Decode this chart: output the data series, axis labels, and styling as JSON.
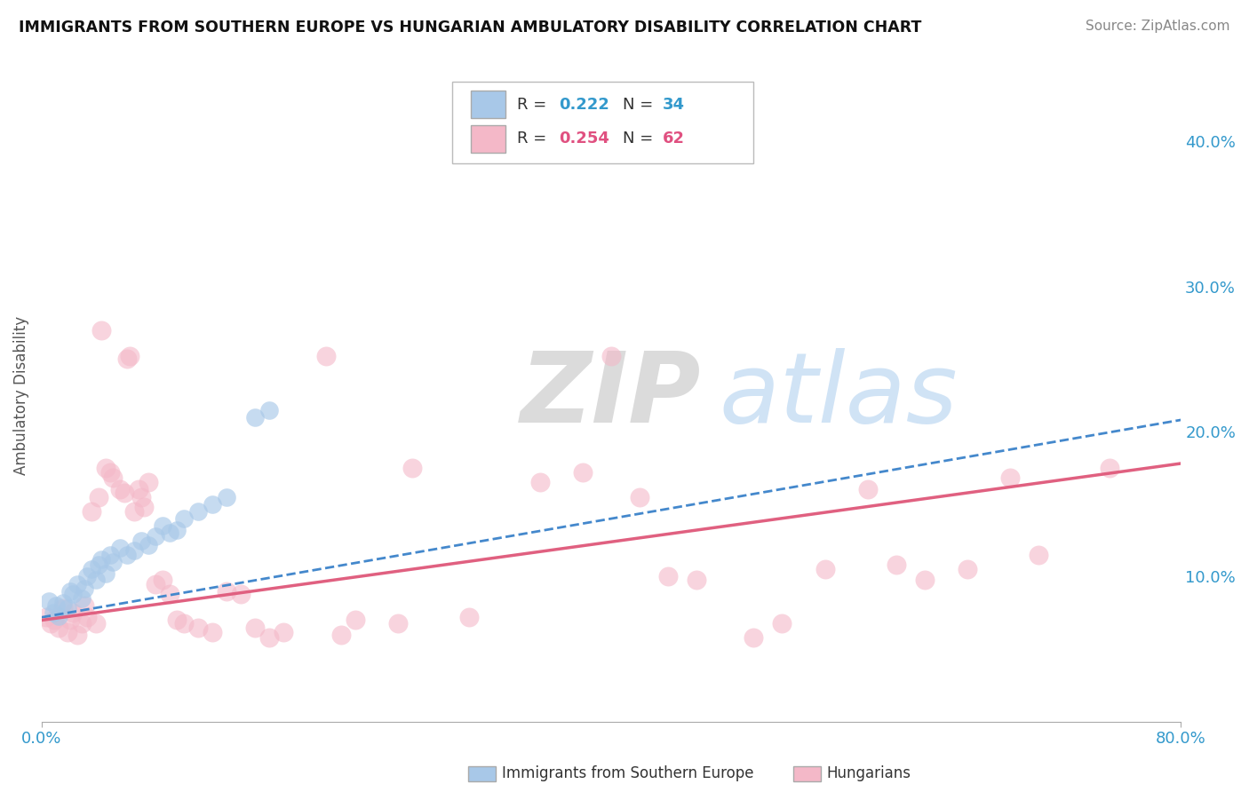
{
  "title": "IMMIGRANTS FROM SOUTHERN EUROPE VS HUNGARIAN AMBULATORY DISABILITY CORRELATION CHART",
  "source": "Source: ZipAtlas.com",
  "ylabel": "Ambulatory Disability",
  "right_yticks": [
    "40.0%",
    "30.0%",
    "20.0%",
    "10.0%"
  ],
  "right_ytick_vals": [
    0.4,
    0.3,
    0.2,
    0.1
  ],
  "blue_scatter": [
    [
      0.005,
      0.083
    ],
    [
      0.008,
      0.075
    ],
    [
      0.01,
      0.08
    ],
    [
      0.012,
      0.073
    ],
    [
      0.015,
      0.082
    ],
    [
      0.018,
      0.078
    ],
    [
      0.02,
      0.09
    ],
    [
      0.022,
      0.088
    ],
    [
      0.025,
      0.095
    ],
    [
      0.028,
      0.085
    ],
    [
      0.03,
      0.092
    ],
    [
      0.032,
      0.1
    ],
    [
      0.035,
      0.105
    ],
    [
      0.038,
      0.098
    ],
    [
      0.04,
      0.108
    ],
    [
      0.042,
      0.112
    ],
    [
      0.045,
      0.102
    ],
    [
      0.048,
      0.115
    ],
    [
      0.05,
      0.11
    ],
    [
      0.055,
      0.12
    ],
    [
      0.06,
      0.115
    ],
    [
      0.065,
      0.118
    ],
    [
      0.07,
      0.125
    ],
    [
      0.075,
      0.122
    ],
    [
      0.08,
      0.128
    ],
    [
      0.085,
      0.135
    ],
    [
      0.09,
      0.13
    ],
    [
      0.095,
      0.132
    ],
    [
      0.1,
      0.14
    ],
    [
      0.11,
      0.145
    ],
    [
      0.12,
      0.15
    ],
    [
      0.13,
      0.155
    ],
    [
      0.15,
      0.21
    ],
    [
      0.16,
      0.215
    ]
  ],
  "pink_scatter": [
    [
      0.003,
      0.072
    ],
    [
      0.006,
      0.068
    ],
    [
      0.009,
      0.07
    ],
    [
      0.012,
      0.065
    ],
    [
      0.015,
      0.078
    ],
    [
      0.018,
      0.062
    ],
    [
      0.02,
      0.07
    ],
    [
      0.022,
      0.075
    ],
    [
      0.025,
      0.06
    ],
    [
      0.028,
      0.068
    ],
    [
      0.03,
      0.08
    ],
    [
      0.032,
      0.072
    ],
    [
      0.035,
      0.145
    ],
    [
      0.038,
      0.068
    ],
    [
      0.04,
      0.155
    ],
    [
      0.042,
      0.27
    ],
    [
      0.045,
      0.175
    ],
    [
      0.048,
      0.172
    ],
    [
      0.05,
      0.168
    ],
    [
      0.055,
      0.16
    ],
    [
      0.058,
      0.158
    ],
    [
      0.06,
      0.25
    ],
    [
      0.062,
      0.252
    ],
    [
      0.065,
      0.145
    ],
    [
      0.068,
      0.16
    ],
    [
      0.07,
      0.155
    ],
    [
      0.072,
      0.148
    ],
    [
      0.075,
      0.165
    ],
    [
      0.08,
      0.095
    ],
    [
      0.085,
      0.098
    ],
    [
      0.09,
      0.088
    ],
    [
      0.095,
      0.07
    ],
    [
      0.1,
      0.068
    ],
    [
      0.11,
      0.065
    ],
    [
      0.12,
      0.062
    ],
    [
      0.13,
      0.09
    ],
    [
      0.14,
      0.088
    ],
    [
      0.15,
      0.065
    ],
    [
      0.16,
      0.058
    ],
    [
      0.17,
      0.062
    ],
    [
      0.2,
      0.252
    ],
    [
      0.21,
      0.06
    ],
    [
      0.22,
      0.07
    ],
    [
      0.25,
      0.068
    ],
    [
      0.26,
      0.175
    ],
    [
      0.3,
      0.072
    ],
    [
      0.35,
      0.165
    ],
    [
      0.38,
      0.172
    ],
    [
      0.4,
      0.252
    ],
    [
      0.42,
      0.155
    ],
    [
      0.44,
      0.1
    ],
    [
      0.46,
      0.098
    ],
    [
      0.5,
      0.058
    ],
    [
      0.52,
      0.068
    ],
    [
      0.55,
      0.105
    ],
    [
      0.58,
      0.16
    ],
    [
      0.6,
      0.108
    ],
    [
      0.62,
      0.098
    ],
    [
      0.65,
      0.105
    ],
    [
      0.68,
      0.168
    ],
    [
      0.7,
      0.115
    ],
    [
      0.75,
      0.175
    ]
  ],
  "blue_line_x": [
    0.0,
    0.8
  ],
  "blue_line_y": [
    0.072,
    0.208
  ],
  "pink_line_x": [
    0.0,
    0.8
  ],
  "pink_line_y": [
    0.07,
    0.178
  ],
  "blue_color": "#a8c8e8",
  "pink_color": "#f4b8c8",
  "blue_line_color": "#4488cc",
  "pink_line_color": "#e06080",
  "bg_color": "#ffffff",
  "grid_color": "#cccccc",
  "xlim": [
    0.0,
    0.8
  ],
  "ylim": [
    0.0,
    0.45
  ],
  "r1": "0.222",
  "n1": "34",
  "r2": "0.254",
  "n2": "62",
  "legend_label1": "Immigrants from Southern Europe",
  "legend_label2": "Hungarians"
}
